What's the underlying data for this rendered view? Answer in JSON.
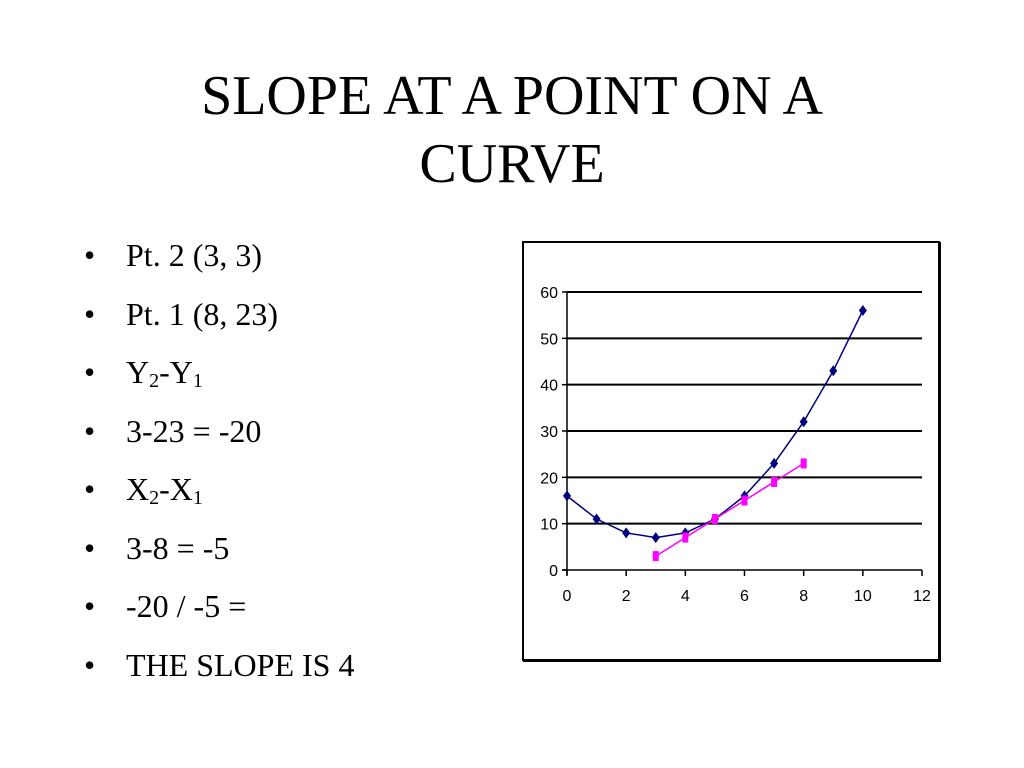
{
  "slide": {
    "title_line1": "SLOPE AT A POINT ON A",
    "title_line2": "CURVE",
    "bullet_glyph": "•",
    "bullets": [
      {
        "text": "Pt. 2 (3, 3)"
      },
      {
        "text": "Pt. 1 (8, 23)"
      },
      {
        "a": "Y",
        "a_sub": "2",
        "sep": "-",
        "b": "Y",
        "b_sub": "1"
      },
      {
        "text": "3-23 = -20"
      },
      {
        "a": "X",
        "a_sub": "2",
        "sep": "-",
        "b": "X",
        "b_sub": "1"
      },
      {
        "text": "3-8 = -5"
      },
      {
        "text": "-20 / -5 ="
      },
      {
        "text": "THE SLOPE IS 4"
      }
    ]
  },
  "chart_data": {
    "type": "line",
    "title": "",
    "xlabel": "",
    "ylabel": "",
    "xlim": [
      0,
      12
    ],
    "ylim": [
      0,
      60
    ],
    "x_ticks": [
      0,
      2,
      4,
      6,
      8,
      10,
      12
    ],
    "y_ticks": [
      0,
      10,
      20,
      30,
      40,
      50,
      60
    ],
    "grid": "horizontal",
    "legend": "none",
    "series": [
      {
        "marker": "diamond",
        "color": "#00007f",
        "points": [
          [
            0,
            16
          ],
          [
            1,
            11
          ],
          [
            2,
            8
          ],
          [
            3,
            7
          ],
          [
            4,
            8
          ],
          [
            5,
            11
          ],
          [
            6,
            16
          ],
          [
            7,
            23
          ],
          [
            8,
            32
          ],
          [
            9,
            43
          ],
          [
            10,
            56
          ]
        ]
      },
      {
        "marker": "square",
        "color": "#ff00ff",
        "points": [
          [
            3,
            3
          ],
          [
            4,
            7
          ],
          [
            5,
            11
          ],
          [
            6,
            15
          ],
          [
            7,
            19
          ],
          [
            8,
            23
          ]
        ]
      }
    ]
  }
}
